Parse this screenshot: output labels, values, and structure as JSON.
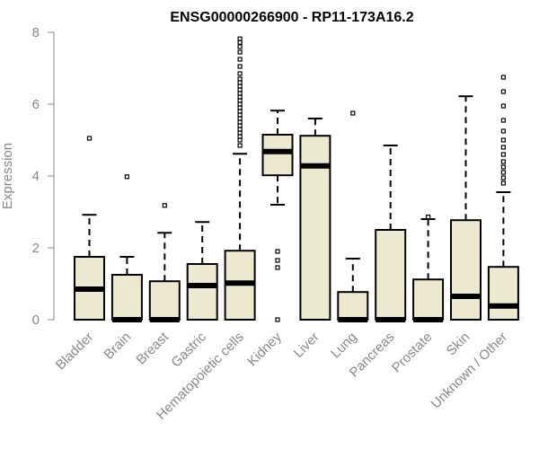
{
  "chart_data": {
    "type": "boxplot",
    "title": "ENSG00000266900 - RP11-173A16.2",
    "ylabel": "Expression",
    "xlabel": "",
    "ylim": [
      0,
      8
    ],
    "yticks": [
      "0",
      "2",
      "4",
      "6",
      "8"
    ],
    "box_fill": "#EDE8D0",
    "axis_color": "#888888",
    "categories": [
      "Bladder",
      "Brain",
      "Breast",
      "Gastric",
      "Hematopoietic cells",
      "Kidney",
      "Liver",
      "Lung",
      "Pancreas",
      "Prostate",
      "Skin",
      "Unknown / Other"
    ],
    "boxes": [
      {
        "category": "Bladder",
        "whisker_low": 0,
        "q1": 0,
        "median": 0.85,
        "q3": 1.75,
        "whisker_high": 2.92,
        "outliers": [
          5.05
        ]
      },
      {
        "category": "Brain",
        "whisker_low": 0,
        "q1": 0,
        "median": 0,
        "q3": 1.25,
        "whisker_high": 1.75,
        "outliers": [
          3.98
        ]
      },
      {
        "category": "Breast",
        "whisker_low": 0,
        "q1": 0,
        "median": 0,
        "q3": 1.07,
        "whisker_high": 2.42,
        "outliers": [
          3.18
        ]
      },
      {
        "category": "Gastric",
        "whisker_low": 0,
        "q1": 0,
        "median": 0.95,
        "q3": 1.55,
        "whisker_high": 2.72,
        "outliers": []
      },
      {
        "category": "Hematopoietic cells",
        "whisker_low": 0,
        "q1": 0,
        "median": 1.02,
        "q3": 1.92,
        "whisker_high": 4.62,
        "outliers": [
          4.85,
          5.0,
          5.1,
          5.2,
          5.3,
          5.4,
          5.5,
          5.6,
          5.7,
          5.8,
          5.9,
          6.0,
          6.1,
          6.2,
          6.3,
          6.4,
          6.5,
          6.6,
          6.7,
          6.85,
          7.05,
          7.25,
          7.45,
          7.6,
          7.72,
          7.82
        ]
      },
      {
        "category": "Kidney",
        "whisker_low": 3.2,
        "q1": 4.02,
        "median": 4.68,
        "q3": 5.15,
        "whisker_high": 5.82,
        "outliers": [
          0,
          1.45,
          1.65,
          1.9
        ]
      },
      {
        "category": "Liver",
        "whisker_low": 0,
        "q1": 0,
        "median": 4.28,
        "q3": 5.12,
        "whisker_high": 5.6,
        "outliers": []
      },
      {
        "category": "Lung",
        "whisker_low": 0,
        "q1": 0,
        "median": 0,
        "q3": 0.77,
        "whisker_high": 1.7,
        "outliers": [
          5.75
        ]
      },
      {
        "category": "Pancreas",
        "whisker_low": 0,
        "q1": 0,
        "median": 0,
        "q3": 2.5,
        "whisker_high": 4.85,
        "outliers": []
      },
      {
        "category": "Prostate",
        "whisker_low": 0,
        "q1": 0,
        "median": 0,
        "q3": 1.12,
        "whisker_high": 2.8,
        "outliers": [
          2.86
        ]
      },
      {
        "category": "Skin",
        "whisker_low": 0,
        "q1": 0,
        "median": 0.65,
        "q3": 2.77,
        "whisker_high": 6.22,
        "outliers": []
      },
      {
        "category": "Unknown / Other",
        "whisker_low": 0,
        "q1": 0,
        "median": 0.38,
        "q3": 1.47,
        "whisker_high": 3.55,
        "outliers": [
          3.8,
          3.95,
          4.1,
          4.25,
          4.4,
          4.6,
          4.8,
          5.0,
          5.25,
          5.55,
          5.95,
          6.35,
          6.75
        ]
      }
    ]
  }
}
